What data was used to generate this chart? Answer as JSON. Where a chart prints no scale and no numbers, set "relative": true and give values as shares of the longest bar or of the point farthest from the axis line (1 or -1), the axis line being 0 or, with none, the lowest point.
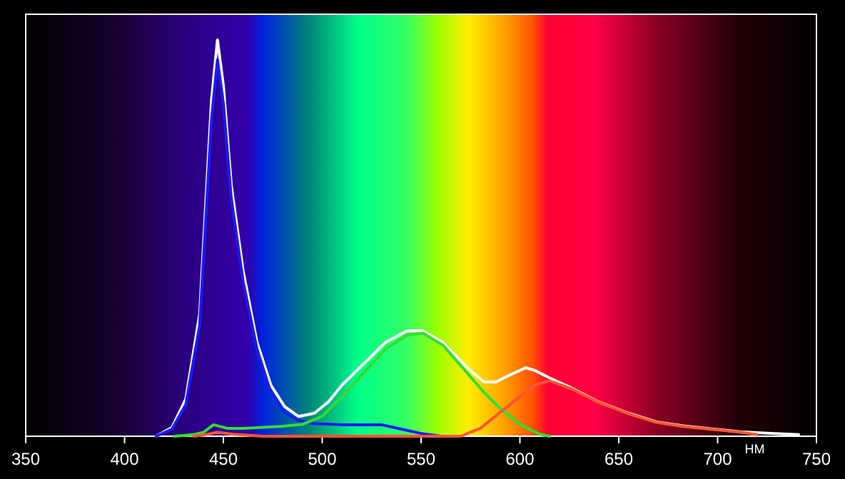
{
  "chart_data": {
    "type": "line",
    "xlabel": "НМ",
    "relative": true,
    "xlim": [
      350,
      750
    ],
    "xticks": [
      350,
      400,
      450,
      500,
      550,
      600,
      650,
      700,
      750
    ],
    "tick_labels": "x",
    "grid": false,
    "marker": "none",
    "line_style": "solid",
    "series": [
      {
        "color": "#ffffff",
        "x": [
          416,
          424,
          431,
          438,
          444,
          447,
          450,
          454,
          460,
          467,
          474,
          481,
          488,
          496,
          503,
          510,
          521,
          532,
          543,
          551,
          561,
          568,
          575,
          582,
          588,
          595,
          603,
          608,
          615,
          626,
          640,
          655,
          669,
          684,
          698,
          712,
          727,
          741
        ],
        "values": [
          0,
          0.022,
          0.094,
          0.309,
          0.849,
          1,
          0.885,
          0.633,
          0.417,
          0.237,
          0.129,
          0.075,
          0.05,
          0.058,
          0.086,
          0.129,
          0.183,
          0.237,
          0.266,
          0.266,
          0.237,
          0.201,
          0.165,
          0.137,
          0.137,
          0.155,
          0.173,
          0.165,
          0.147,
          0.122,
          0.086,
          0.058,
          0.036,
          0.025,
          0.018,
          0.011,
          0.007,
          0.004
        ]
      },
      {
        "color": "#1a1aff",
        "x": [
          416,
          424,
          431,
          438,
          444,
          447,
          450,
          454,
          460,
          467,
          474,
          481,
          488,
          496,
          510,
          530,
          540,
          550,
          560
        ],
        "values": [
          0,
          0.018,
          0.08,
          0.28,
          0.8,
          0.95,
          0.84,
          0.6,
          0.39,
          0.22,
          0.11,
          0.06,
          0.04,
          0.032,
          0.029,
          0.029,
          0.018,
          0.007,
          0
        ]
      },
      {
        "color": "#33dd33",
        "x": [
          425,
          435,
          440,
          445,
          452,
          460,
          480,
          490,
          500,
          510,
          521,
          532,
          543,
          551,
          561,
          568,
          575,
          582,
          590,
          600,
          610,
          615
        ],
        "values": [
          0,
          0.004,
          0.01,
          0.029,
          0.02,
          0.02,
          0.025,
          0.03,
          0.05,
          0.1,
          0.16,
          0.22,
          0.255,
          0.26,
          0.23,
          0.19,
          0.15,
          0.11,
          0.07,
          0.03,
          0.005,
          0
        ]
      },
      {
        "color": "#ff5533",
        "x": [
          435,
          440,
          447,
          455,
          470,
          570,
          580,
          590,
          600,
          608,
          615,
          626,
          640,
          655,
          669,
          684,
          698,
          712,
          720
        ],
        "values": [
          0,
          0.003,
          0.01,
          0.005,
          0,
          0,
          0.02,
          0.06,
          0.1,
          0.13,
          0.14,
          0.12,
          0.085,
          0.057,
          0.035,
          0.024,
          0.017,
          0.01,
          0.004
        ]
      }
    ]
  }
}
